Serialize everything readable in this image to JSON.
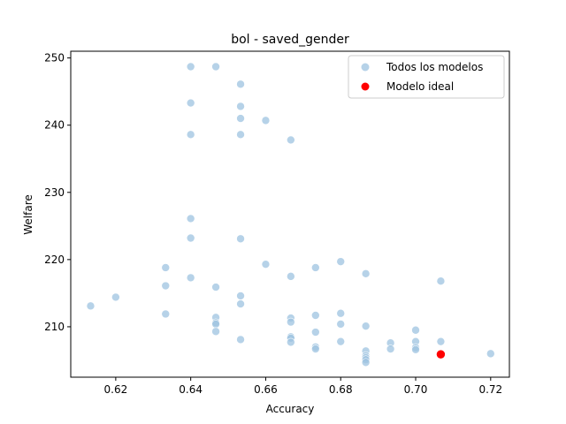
{
  "chart_data": {
    "type": "scatter",
    "title": "bol - saved_gender",
    "xlabel": "Accuracy",
    "ylabel": "Welfare",
    "xlim": [
      0.608,
      0.725
    ],
    "ylim": [
      202.5,
      251
    ],
    "xticks": [
      0.62,
      0.64,
      0.66,
      0.68,
      0.7,
      0.72
    ],
    "xtick_labels": [
      "0.62",
      "0.64",
      "0.66",
      "0.68",
      "0.70",
      "0.72"
    ],
    "yticks": [
      210,
      220,
      230,
      240,
      250
    ],
    "ytick_labels": [
      "210",
      "220",
      "230",
      "240",
      "250"
    ],
    "grid": false,
    "legend": "top-right",
    "series": [
      {
        "name": "Todos los modelos",
        "color": "#9ec3e0",
        "points": [
          [
            0.64,
            248.7
          ],
          [
            0.6467,
            248.7
          ],
          [
            0.6533,
            246.1
          ],
          [
            0.64,
            243.3
          ],
          [
            0.6533,
            242.8
          ],
          [
            0.6533,
            241.0
          ],
          [
            0.66,
            240.7
          ],
          [
            0.64,
            238.6
          ],
          [
            0.6533,
            238.6
          ],
          [
            0.6667,
            237.8
          ],
          [
            0.64,
            226.1
          ],
          [
            0.64,
            223.2
          ],
          [
            0.6533,
            223.1
          ],
          [
            0.68,
            219.7
          ],
          [
            0.66,
            219.3
          ],
          [
            0.6333,
            218.8
          ],
          [
            0.6733,
            218.8
          ],
          [
            0.6867,
            217.9
          ],
          [
            0.64,
            217.3
          ],
          [
            0.6667,
            217.5
          ],
          [
            0.7067,
            216.8
          ],
          [
            0.6333,
            216.1
          ],
          [
            0.6467,
            215.9
          ],
          [
            0.6533,
            214.6
          ],
          [
            0.62,
            214.4
          ],
          [
            0.6533,
            213.4
          ],
          [
            0.6133,
            213.1
          ],
          [
            0.68,
            212.0
          ],
          [
            0.6333,
            211.9
          ],
          [
            0.6733,
            211.7
          ],
          [
            0.6467,
            211.4
          ],
          [
            0.6667,
            211.3
          ],
          [
            0.6467,
            210.6
          ],
          [
            0.6667,
            210.7
          ],
          [
            0.6467,
            210.4
          ],
          [
            0.68,
            210.4
          ],
          [
            0.6867,
            210.1
          ],
          [
            0.7,
            209.5
          ],
          [
            0.6467,
            209.3
          ],
          [
            0.6733,
            209.2
          ],
          [
            0.6667,
            208.5
          ],
          [
            0.6667,
            208.3
          ],
          [
            0.6533,
            208.1
          ],
          [
            0.68,
            207.8
          ],
          [
            0.6667,
            207.7
          ],
          [
            0.6933,
            207.6
          ],
          [
            0.7,
            207.8
          ],
          [
            0.7067,
            207.8
          ],
          [
            0.6733,
            207.0
          ],
          [
            0.6733,
            206.7
          ],
          [
            0.6867,
            206.4
          ],
          [
            0.6933,
            206.7
          ],
          [
            0.7,
            206.9
          ],
          [
            0.7,
            206.6
          ],
          [
            0.6867,
            205.7
          ],
          [
            0.6867,
            205.4
          ],
          [
            0.6867,
            205.1
          ],
          [
            0.6867,
            204.7
          ],
          [
            0.72,
            206.0
          ]
        ]
      },
      {
        "name": "Modelo ideal",
        "color": "#ff0000",
        "points": [
          [
            0.7067,
            205.9
          ]
        ]
      }
    ]
  }
}
